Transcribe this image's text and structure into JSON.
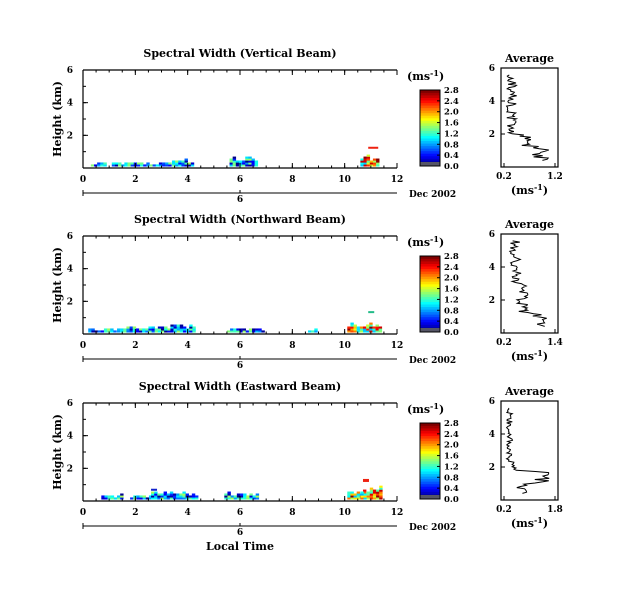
{
  "chart_data": [
    {
      "type": "heatmap",
      "title": "Spectral Width (Vertical Beam)",
      "ylabel": "Height (km)",
      "x_ticks": [
        "0",
        "2",
        "4",
        "6",
        "8",
        "10",
        "12"
      ],
      "y_ticks": [
        "2",
        "4",
        "6"
      ],
      "xlim": [
        0,
        12
      ],
      "ylim": [
        0,
        6
      ],
      "date": "Dec 2002",
      "date_marker": "6",
      "colorbar_unit": "(ms",
      "colorbar_unit_sup": "-1",
      "colorbar_unit_end": ")",
      "colorbar_ticks": [
        "0.0",
        "0.4",
        "0.8",
        "1.2",
        "1.6",
        "2.0",
        "2.4",
        "2.8"
      ],
      "colorbar_range": [
        0.0,
        2.8
      ],
      "profile": {
        "title": "Average",
        "x_ticks": [
          "0.2",
          "1.2"
        ],
        "xlim": [
          0.2,
          1.2
        ],
        "y_ticks": [
          "2",
          "4",
          "6"
        ],
        "xlabel": "(ms",
        "xlabel_sup": "-1",
        "xlabel_end": ")"
      }
    },
    {
      "type": "heatmap",
      "title": "Spectral Width (Northward Beam)",
      "ylabel": "Height (km)",
      "x_ticks": [
        "0",
        "2",
        "4",
        "6",
        "8",
        "10",
        "12"
      ],
      "y_ticks": [
        "2",
        "4",
        "6"
      ],
      "xlim": [
        0,
        12
      ],
      "ylim": [
        0,
        6
      ],
      "date": "Dec 2002",
      "date_marker": "6",
      "colorbar_unit": "(ms",
      "colorbar_unit_sup": "-1",
      "colorbar_unit_end": ")",
      "colorbar_ticks": [
        "0.0",
        "0.4",
        "0.8",
        "1.2",
        "1.6",
        "2.0",
        "2.4",
        "2.8"
      ],
      "colorbar_range": [
        0.0,
        2.8
      ],
      "profile": {
        "title": "Average",
        "x_ticks": [
          "0.2",
          "1.4"
        ],
        "xlim": [
          0.2,
          1.4
        ],
        "y_ticks": [
          "2",
          "4",
          "6"
        ],
        "xlabel": "(ms",
        "xlabel_sup": "-1",
        "xlabel_end": ")"
      }
    },
    {
      "type": "heatmap",
      "title": "Spectral Width (Eastward Beam)",
      "ylabel": "Height (km)",
      "xlabel": "Local Time",
      "x_ticks": [
        "0",
        "2",
        "4",
        "6",
        "8",
        "10",
        "12"
      ],
      "y_ticks": [
        "2",
        "4",
        "6"
      ],
      "xlim": [
        0,
        12
      ],
      "ylim": [
        0,
        6
      ],
      "date": "Dec 2002",
      "date_marker": "6",
      "colorbar_unit": "(ms",
      "colorbar_unit_sup": "-1",
      "colorbar_unit_end": ")",
      "colorbar_ticks": [
        "0.0",
        "0.4",
        "0.8",
        "1.2",
        "1.6",
        "2.0",
        "2.4",
        "2.8"
      ],
      "colorbar_range": [
        0.0,
        2.8
      ],
      "profile": {
        "title": "Average",
        "x_ticks": [
          "0.2",
          "1.8"
        ],
        "xlim": [
          0.2,
          1.8
        ],
        "y_ticks": [
          "2",
          "4",
          "6"
        ],
        "xlabel": "(ms",
        "xlabel_sup": "-1",
        "xlabel_end": ")"
      }
    }
  ]
}
